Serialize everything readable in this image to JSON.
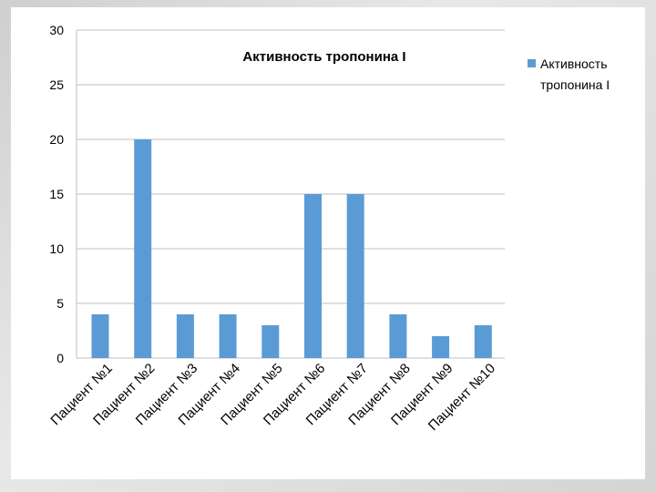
{
  "chart_data": {
    "type": "bar",
    "title": "Активность тропонина I",
    "categories": [
      "Пациент №1",
      "Пациент №2",
      "Пациент №3",
      "Пациент №4",
      "Пациент №5",
      "Пациент №6",
      "Пациент №7",
      "Пациент №8",
      "Пациент №9",
      "Пациент №10"
    ],
    "series": [
      {
        "name": "Активность тропонина I",
        "values": [
          4,
          20,
          4,
          4,
          3,
          15,
          15,
          4,
          2,
          3
        ],
        "color": "#5b9bd5"
      }
    ],
    "ylim": [
      0,
      30
    ],
    "yticks": [
      "0",
      "5",
      "10",
      "15",
      "20",
      "25",
      "30"
    ],
    "grid": true,
    "legend_position": "right",
    "legend_lines": [
      "Активность",
      "тропонина I"
    ]
  }
}
